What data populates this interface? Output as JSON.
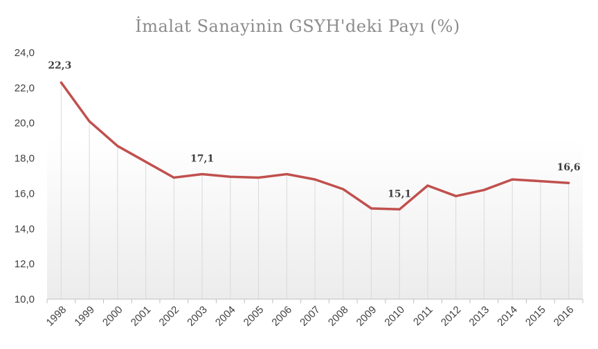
{
  "chart_data": {
    "type": "line",
    "title": "İmalat Sanayinin GSYH'deki Payı (%)",
    "xlabel": "",
    "ylabel": "",
    "categories": [
      "1998",
      "1999",
      "2000",
      "2001",
      "2002",
      "2003",
      "2004",
      "2005",
      "2006",
      "2007",
      "2008",
      "2009",
      "2010",
      "2011",
      "2012",
      "2013",
      "2014",
      "2015",
      "2016"
    ],
    "series": [
      {
        "values": [
          22.3,
          20.1,
          18.7,
          17.8,
          16.9,
          17.1,
          16.95,
          16.9,
          17.1,
          16.8,
          16.25,
          15.15,
          15.1,
          16.45,
          15.85,
          16.2,
          16.8,
          16.7,
          16.6
        ]
      }
    ],
    "ylim": [
      10,
      24
    ],
    "yticks": [
      "10,0",
      "12,0",
      "14,0",
      "16,0",
      "18,0",
      "20,0",
      "22,0",
      "24,0"
    ],
    "data_labels": [
      {
        "index": 0,
        "text": "22,3"
      },
      {
        "index": 5,
        "text": "17,1"
      },
      {
        "index": 12,
        "text": "15,1"
      },
      {
        "index": 18,
        "text": "16,6"
      }
    ],
    "grid": "vertical drop lines",
    "colors": {
      "line": "#c0504d",
      "gridline": "#d9d9d9",
      "axis": "#bfbfbf"
    }
  }
}
